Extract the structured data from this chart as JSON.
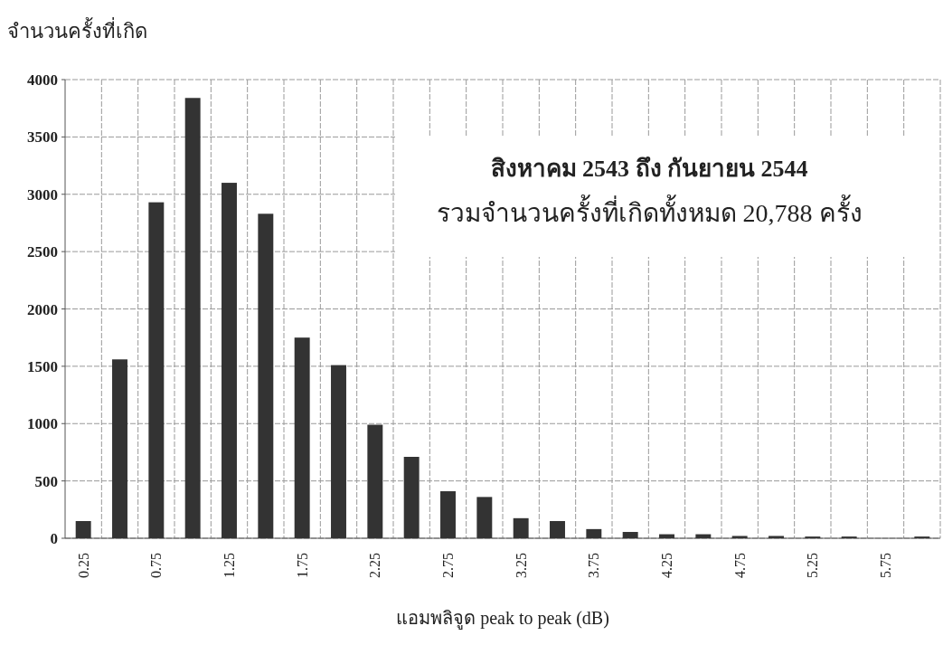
{
  "chart_data": {
    "type": "bar",
    "ylabel": "จำนวนครั้งที่เกิด",
    "xlabel": "แอมพลิจูด peak to peak (dB)",
    "annotations": [
      "สิงหาคม 2543 ถึง กันยายน 2544",
      "รวมจำนวนครั้งที่เกิดทั้งหมด 20,788 ครั้ง"
    ],
    "categories": [
      "0.25",
      null,
      "0.75",
      null,
      "1.25",
      null,
      "1.75",
      null,
      "2.25",
      null,
      "2.75",
      null,
      "3.25",
      null,
      "3.75",
      null,
      "4.25",
      null,
      "4.75",
      null,
      "5.25",
      null,
      "5.75",
      null
    ],
    "values": [
      150,
      1560,
      2930,
      3840,
      3100,
      2830,
      1750,
      1510,
      990,
      710,
      410,
      360,
      175,
      150,
      80,
      55,
      35,
      35,
      20,
      20,
      15,
      15,
      0,
      15
    ],
    "color": "#333333",
    "ylim": [
      0,
      4000
    ],
    "yticks": [
      0,
      500,
      1000,
      1500,
      2000,
      2500,
      3000,
      3500,
      4000
    ],
    "grid": true
  }
}
